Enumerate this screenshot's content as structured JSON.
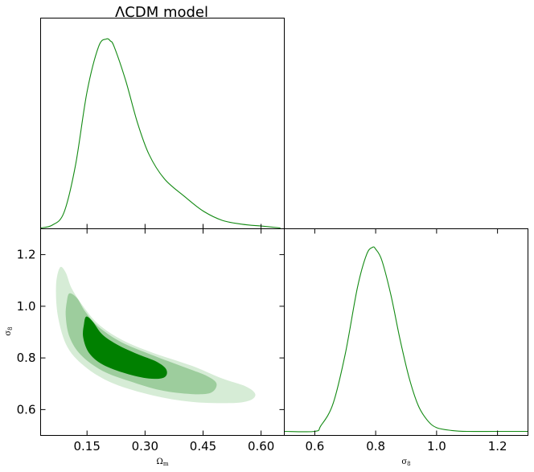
{
  "chart_data": [
    {
      "type": "line",
      "panel": "top-left",
      "title": "ΛCDM model",
      "xlabel": "",
      "ylabel": "",
      "xlim": [
        0.03,
        0.66
      ],
      "series": [
        {
          "color": "#138a13",
          "x": [
            0.03,
            0.06,
            0.09,
            0.12,
            0.15,
            0.18,
            0.2,
            0.21,
            0.22,
            0.25,
            0.28,
            0.31,
            0.35,
            0.4,
            0.45,
            0.5,
            0.55,
            0.6,
            0.65
          ],
          "y": [
            0.0,
            0.015,
            0.08,
            0.33,
            0.72,
            0.96,
            1.0,
            0.99,
            0.96,
            0.78,
            0.56,
            0.39,
            0.26,
            0.17,
            0.09,
            0.04,
            0.02,
            0.01,
            0.0
          ]
        }
      ]
    },
    {
      "type": "contour",
      "panel": "bottom-left",
      "xlabel": "Ω_m",
      "ylabel": "σ_8",
      "xlim": [
        0.03,
        0.66
      ],
      "ylim": [
        0.5,
        1.3
      ],
      "xticks": [
        "0.15",
        "0.30",
        "0.45",
        "0.60"
      ],
      "yticks": [
        "0.6",
        "0.8",
        "1.0",
        "1.2"
      ],
      "levels": [
        {
          "color": "#d6ecd6",
          "polygon": [
            [
              0.08,
              1.15
            ],
            [
              0.095,
              1.13
            ],
            [
              0.11,
              1.07
            ],
            [
              0.14,
              1.0
            ],
            [
              0.18,
              0.93
            ],
            [
              0.24,
              0.87
            ],
            [
              0.32,
              0.82
            ],
            [
              0.42,
              0.77
            ],
            [
              0.5,
              0.72
            ],
            [
              0.56,
              0.69
            ],
            [
              0.585,
              0.66
            ],
            [
              0.57,
              0.635
            ],
            [
              0.52,
              0.625
            ],
            [
              0.42,
              0.63
            ],
            [
              0.32,
              0.655
            ],
            [
              0.22,
              0.7
            ],
            [
              0.15,
              0.76
            ],
            [
              0.1,
              0.84
            ],
            [
              0.075,
              0.96
            ],
            [
              0.07,
              1.08
            ]
          ]
        },
        {
          "color": "#9dcd9d",
          "polygon": [
            [
              0.105,
              1.05
            ],
            [
              0.125,
              1.03
            ],
            [
              0.145,
              0.98
            ],
            [
              0.18,
              0.92
            ],
            [
              0.24,
              0.86
            ],
            [
              0.32,
              0.81
            ],
            [
              0.4,
              0.765
            ],
            [
              0.46,
              0.73
            ],
            [
              0.485,
              0.7
            ],
            [
              0.47,
              0.665
            ],
            [
              0.42,
              0.66
            ],
            [
              0.34,
              0.675
            ],
            [
              0.26,
              0.71
            ],
            [
              0.19,
              0.75
            ],
            [
              0.135,
              0.81
            ],
            [
              0.105,
              0.88
            ],
            [
              0.095,
              0.96
            ],
            [
              0.098,
              1.02
            ]
          ]
        },
        {
          "color": "#008000",
          "polygon": [
            [
              0.148,
              0.96
            ],
            [
              0.165,
              0.94
            ],
            [
              0.19,
              0.89
            ],
            [
              0.23,
              0.85
            ],
            [
              0.28,
              0.815
            ],
            [
              0.33,
              0.785
            ],
            [
              0.355,
              0.755
            ],
            [
              0.35,
              0.725
            ],
            [
              0.31,
              0.72
            ],
            [
              0.25,
              0.74
            ],
            [
              0.19,
              0.775
            ],
            [
              0.155,
              0.82
            ],
            [
              0.14,
              0.88
            ],
            [
              0.142,
              0.93
            ]
          ]
        }
      ]
    },
    {
      "type": "line",
      "panel": "bottom-right",
      "xlabel": "σ_8",
      "ylabel": "",
      "xlim": [
        0.5,
        1.3
      ],
      "xticks": [
        "0.6",
        "0.8",
        "1.0",
        "1.2"
      ],
      "series": [
        {
          "color": "#138a13",
          "x": [
            0.5,
            0.6,
            0.62,
            0.66,
            0.7,
            0.74,
            0.77,
            0.79,
            0.8,
            0.82,
            0.85,
            0.88,
            0.91,
            0.94,
            0.97,
            1.0,
            1.05,
            1.1,
            1.2,
            1.3
          ],
          "y": [
            0.0,
            0.0,
            0.03,
            0.15,
            0.42,
            0.78,
            0.96,
            1.0,
            0.99,
            0.93,
            0.74,
            0.5,
            0.29,
            0.14,
            0.06,
            0.02,
            0.005,
            0.0,
            0.0,
            0.0
          ]
        }
      ]
    }
  ]
}
